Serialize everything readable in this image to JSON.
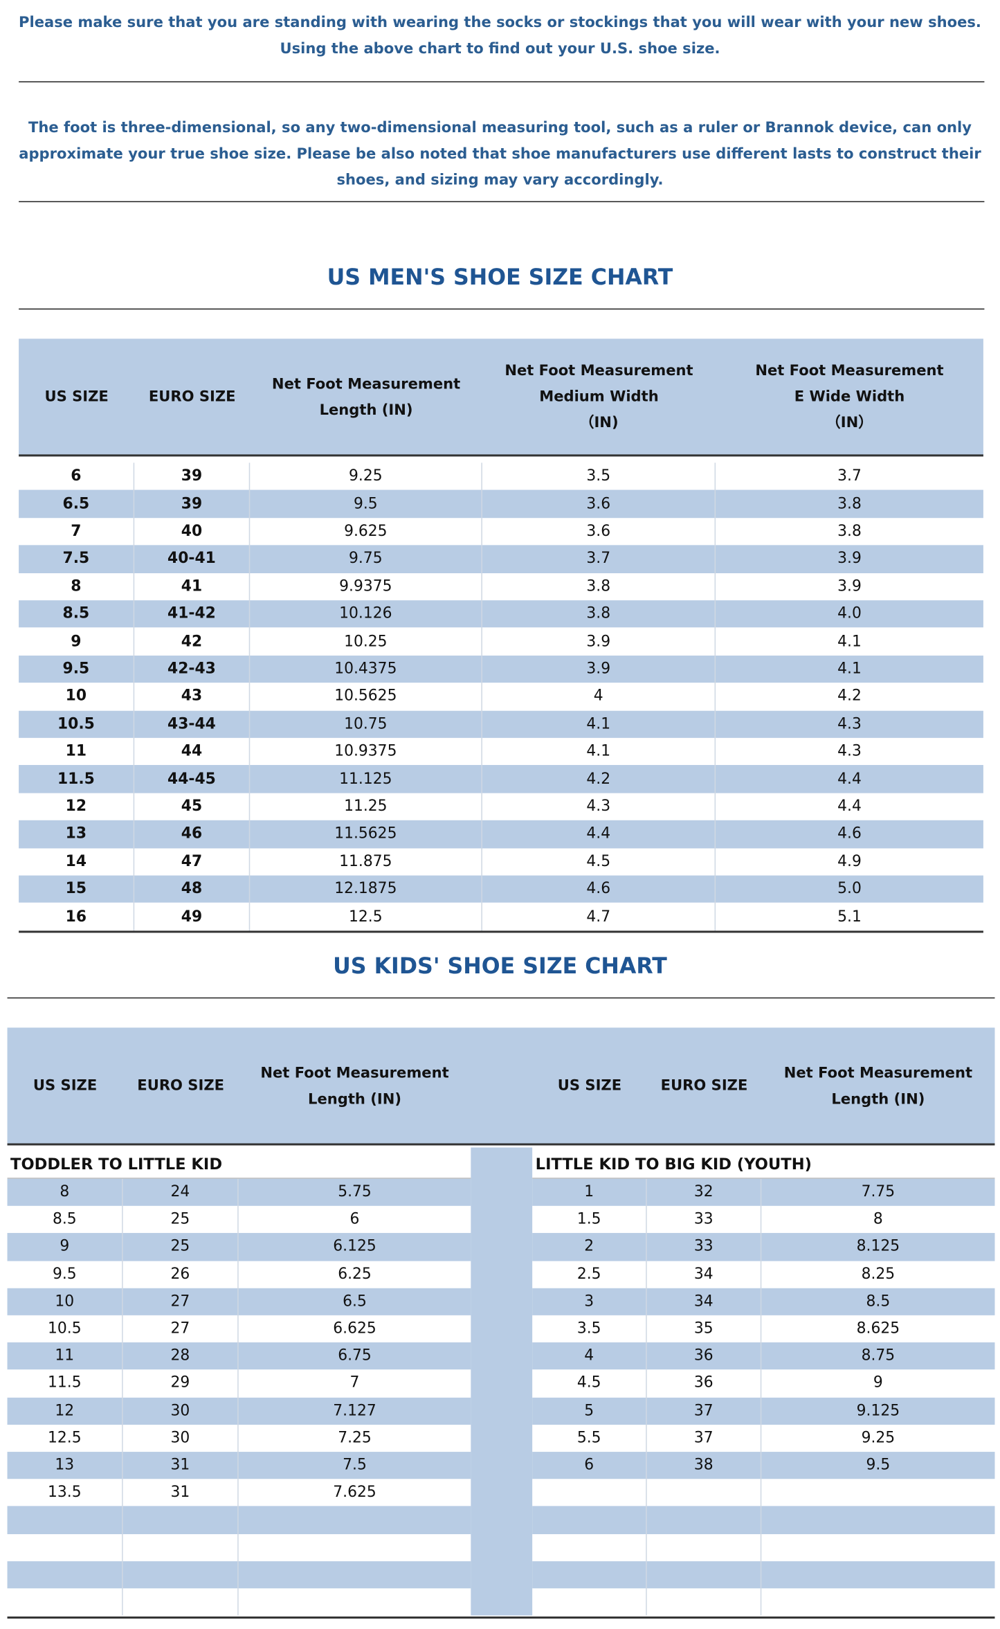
{
  "note1": [
    "Please make sure that you are standing with wearing the socks or stockings that you will wear with your new shoes.",
    "Using the above chart to find out your U.S. shoe size."
  ],
  "note2": [
    "The foot is three-dimensional, so any two-dimensional measuring tool, such as a ruler or Brannok device, can only",
    "approximate your true shoe size. Please be also noted that shoe manufacturers use different lasts to construct their",
    "shoes, and sizing may vary accordingly."
  ],
  "men": {
    "title": "US MEN'S SHOE SIZE CHART",
    "headers": [
      [
        "US SIZE"
      ],
      [
        "EURO SIZE"
      ],
      [
        "Net Foot Measurement",
        "Length (IN)"
      ],
      [
        "Net Foot Measurement",
        "Medium Width",
        "（IN)"
      ],
      [
        "Net Foot Measurement",
        "E Wide Width",
        "（IN）"
      ]
    ],
    "rows": [
      [
        "6",
        "39",
        "9.25",
        "3.5",
        "3.7"
      ],
      [
        "6.5",
        "39",
        "9.5",
        "3.6",
        "3.8"
      ],
      [
        "7",
        "40",
        "9.625",
        "3.6",
        "3.8"
      ],
      [
        "7.5",
        "40-41",
        "9.75",
        "3.7",
        "3.9"
      ],
      [
        "8",
        "41",
        "9.9375",
        "3.8",
        "3.9"
      ],
      [
        "8.5",
        "41-42",
        "10.126",
        "3.8",
        "4.0"
      ],
      [
        "9",
        "42",
        "10.25",
        "3.9",
        "4.1"
      ],
      [
        "9.5",
        "42-43",
        "10.4375",
        "3.9",
        "4.1"
      ],
      [
        "10",
        "43",
        "10.5625",
        "4",
        "4.2"
      ],
      [
        "10.5",
        "43-44",
        "10.75",
        "4.1",
        "4.3"
      ],
      [
        "11",
        "44",
        "10.9375",
        "4.1",
        "4.3"
      ],
      [
        "11.5",
        "44-45",
        "11.125",
        "4.2",
        "4.4"
      ],
      [
        "12",
        "45",
        "11.25",
        "4.3",
        "4.4"
      ],
      [
        "13",
        "46",
        "11.5625",
        "4.4",
        "4.6"
      ],
      [
        "14",
        "47",
        "11.875",
        "4.5",
        "4.9"
      ],
      [
        "15",
        "48",
        "12.1875",
        "4.6",
        "5.0"
      ],
      [
        "16",
        "49",
        "12.5",
        "4.7",
        "5.1"
      ]
    ]
  },
  "kids": {
    "title": "US KIDS' SHOE SIZE CHART",
    "left": {
      "headers": [
        [
          "US SIZE"
        ],
        [
          "EURO SIZE"
        ],
        [
          "Net Foot Measurement",
          "Length (IN)"
        ]
      ],
      "section": "TODDLER TO LITTLE KID",
      "rows": [
        [
          "8",
          "24",
          "5.75"
        ],
        [
          "8.5",
          "25",
          "6"
        ],
        [
          "9",
          "25",
          "6.125"
        ],
        [
          "9.5",
          "26",
          "6.25"
        ],
        [
          "10",
          "27",
          "6.5"
        ],
        [
          "10.5",
          "27",
          "6.625"
        ],
        [
          "11",
          "28",
          "6.75"
        ],
        [
          "11.5",
          "29",
          "7"
        ],
        [
          "12",
          "30",
          "7.127"
        ],
        [
          "12.5",
          "30",
          "7.25"
        ],
        [
          "13",
          "31",
          "7.5"
        ],
        [
          "13.5",
          "31",
          "7.625"
        ]
      ]
    },
    "right": {
      "headers": [
        [
          "US SIZE"
        ],
        [
          "EURO SIZE"
        ],
        [
          "Net Foot Measurement",
          "Length (IN)"
        ]
      ],
      "section": "LITTLE KID TO BIG KID (YOUTH)",
      "rows": [
        [
          "1",
          "32",
          "7.75"
        ],
        [
          "1.5",
          "33",
          "8"
        ],
        [
          "2",
          "33",
          "8.125"
        ],
        [
          "2.5",
          "34",
          "8.25"
        ],
        [
          "3",
          "34",
          "8.5"
        ],
        [
          "3.5",
          "35",
          "8.625"
        ],
        [
          "4",
          "36",
          "8.75"
        ],
        [
          "4.5",
          "36",
          "9"
        ],
        [
          "5",
          "37",
          "9.125"
        ],
        [
          "5.5",
          "37",
          "9.25"
        ],
        [
          "6",
          "38",
          "9.5"
        ]
      ]
    }
  }
}
